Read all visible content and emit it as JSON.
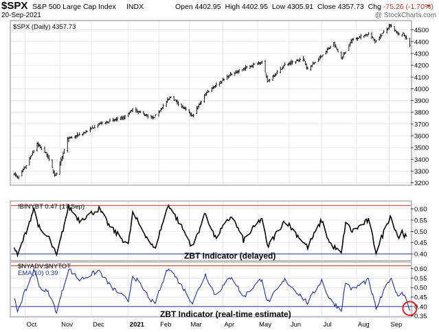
{
  "header": {
    "symbol": "$SPX",
    "name": "S&P 500 Large Cap Index",
    "exchange": "INDX",
    "date": "20-Sep-2021",
    "open_label": "Open",
    "open": "4402.95",
    "high_label": "High",
    "high": "4402.95",
    "low_label": "Low",
    "low": "4305.91",
    "close_label": "Close",
    "close": "4357.73",
    "chg_label": "Chg",
    "chg": "-75.26 (-1.70%)",
    "watermark": "@ StockCharts.com"
  },
  "chart_data": [
    {
      "type": "ohlc",
      "legend": "$SPX (Daily) 4357.73",
      "ylim": [
        3180,
        4580
      ],
      "yticks": [
        3200,
        3300,
        3400,
        3500,
        3600,
        3700,
        3800,
        3900,
        4000,
        4100,
        4200,
        4300,
        4400,
        4500
      ],
      "xticks": [
        "Oct",
        "Nov",
        "Dec",
        "2021",
        "Feb",
        "Mar",
        "Apr",
        "May",
        "Jun",
        "Jul",
        "Aug",
        "Sep"
      ],
      "anchors": [
        [
          "2020-09-21",
          3280
        ],
        [
          "2020-09-24",
          3240
        ],
        [
          "2020-10-02",
          3350
        ],
        [
          "2020-10-12",
          3535
        ],
        [
          "2020-10-16",
          3490
        ],
        [
          "2020-10-21",
          3440
        ],
        [
          "2020-10-28",
          3270
        ],
        [
          "2020-10-30",
          3270
        ],
        [
          "2020-11-09",
          3570
        ],
        [
          "2020-11-25",
          3630
        ],
        [
          "2020-12-08",
          3700
        ],
        [
          "2020-12-31",
          3756
        ],
        [
          "2021-01-08",
          3824
        ],
        [
          "2021-01-27",
          3750
        ],
        [
          "2021-02-12",
          3934
        ],
        [
          "2021-03-04",
          3768
        ],
        [
          "2021-03-17",
          3974
        ],
        [
          "2021-04-09",
          4128
        ],
        [
          "2021-05-07",
          4232
        ],
        [
          "2021-05-12",
          4063
        ],
        [
          "2021-05-28",
          4204
        ],
        [
          "2021-06-14",
          4255
        ],
        [
          "2021-06-18",
          4166
        ],
        [
          "2021-07-12",
          4384
        ],
        [
          "2021-07-19",
          4258
        ],
        [
          "2021-07-29",
          4419
        ],
        [
          "2021-08-13",
          4468
        ],
        [
          "2021-08-19",
          4405
        ],
        [
          "2021-09-02",
          4537
        ],
        [
          "2021-09-10",
          4458
        ],
        [
          "2021-09-13",
          4469
        ],
        [
          "2021-09-17",
          4433
        ],
        [
          "2021-09-20",
          4357.73
        ]
      ]
    },
    {
      "type": "line",
      "legend": "!BINYBT 0.47 (17 Sep)",
      "title": "ZBT Indicator (delayed)",
      "ylim": [
        0.37,
        0.635
      ],
      "yticks": [
        0.4,
        0.45,
        0.5,
        0.55,
        0.6
      ],
      "ylines": [
        0.615,
        0.4
      ],
      "anchors": [
        [
          "2020-09-21",
          0.43
        ],
        [
          "2020-09-24",
          0.39
        ],
        [
          "2020-10-09",
          0.6
        ],
        [
          "2020-10-15",
          0.5
        ],
        [
          "2020-10-23",
          0.47
        ],
        [
          "2020-10-30",
          0.39
        ],
        [
          "2020-11-10",
          0.61
        ],
        [
          "2020-11-20",
          0.55
        ],
        [
          "2020-12-08",
          0.6
        ],
        [
          "2020-12-18",
          0.52
        ],
        [
          "2021-01-04",
          0.44
        ],
        [
          "2021-01-08",
          0.58
        ],
        [
          "2021-01-28",
          0.42
        ],
        [
          "2021-02-10",
          0.62
        ],
        [
          "2021-02-22",
          0.52
        ],
        [
          "2021-03-04",
          0.43
        ],
        [
          "2021-03-16",
          0.58
        ],
        [
          "2021-03-25",
          0.47
        ],
        [
          "2021-04-09",
          0.57
        ],
        [
          "2021-04-20",
          0.46
        ],
        [
          "2021-05-07",
          0.56
        ],
        [
          "2021-05-12",
          0.43
        ],
        [
          "2021-05-28",
          0.55
        ],
        [
          "2021-06-18",
          0.43
        ],
        [
          "2021-07-01",
          0.55
        ],
        [
          "2021-07-08",
          0.45
        ],
        [
          "2021-07-19",
          0.4
        ],
        [
          "2021-07-23",
          0.54
        ],
        [
          "2021-07-29",
          0.5
        ],
        [
          "2021-08-13",
          0.55
        ],
        [
          "2021-08-20",
          0.41
        ],
        [
          "2021-09-02",
          0.57
        ],
        [
          "2021-09-10",
          0.47
        ],
        [
          "2021-09-13",
          0.5
        ],
        [
          "2021-09-17",
          0.47
        ]
      ]
    },
    {
      "type": "line",
      "legend_1": "$NYADV:$NYTOT",
      "legend_2": "EMA(10) 0.39",
      "title": "ZBT Indicator (real-time estimate)",
      "ylim": [
        0.345,
        0.635
      ],
      "yticks": [
        0.35,
        0.4,
        0.45,
        0.5,
        0.55,
        0.6
      ],
      "ylines": [
        0.615,
        0.4
      ],
      "anchors": [
        [
          "2020-09-21",
          0.44
        ],
        [
          "2020-09-24",
          0.38
        ],
        [
          "2020-10-09",
          0.59
        ],
        [
          "2020-10-15",
          0.5
        ],
        [
          "2020-10-23",
          0.47
        ],
        [
          "2020-10-30",
          0.37
        ],
        [
          "2020-11-10",
          0.6
        ],
        [
          "2020-11-20",
          0.54
        ],
        [
          "2020-12-08",
          0.59
        ],
        [
          "2020-12-18",
          0.51
        ],
        [
          "2021-01-04",
          0.43
        ],
        [
          "2021-01-08",
          0.57
        ],
        [
          "2021-01-28",
          0.41
        ],
        [
          "2021-02-10",
          0.61
        ],
        [
          "2021-02-22",
          0.51
        ],
        [
          "2021-03-04",
          0.42
        ],
        [
          "2021-03-16",
          0.57
        ],
        [
          "2021-03-25",
          0.46
        ],
        [
          "2021-04-09",
          0.56
        ],
        [
          "2021-04-20",
          0.45
        ],
        [
          "2021-05-07",
          0.55
        ],
        [
          "2021-05-12",
          0.42
        ],
        [
          "2021-05-28",
          0.54
        ],
        [
          "2021-06-18",
          0.42
        ],
        [
          "2021-07-01",
          0.54
        ],
        [
          "2021-07-08",
          0.44
        ],
        [
          "2021-07-19",
          0.38
        ],
        [
          "2021-07-23",
          0.53
        ],
        [
          "2021-07-29",
          0.49
        ],
        [
          "2021-08-13",
          0.54
        ],
        [
          "2021-08-20",
          0.39
        ],
        [
          "2021-09-02",
          0.55
        ],
        [
          "2021-09-10",
          0.45
        ],
        [
          "2021-09-13",
          0.48
        ],
        [
          "2021-09-17",
          0.44
        ],
        [
          "2021-09-20",
          0.39
        ]
      ]
    }
  ],
  "colors": {
    "price": "#000000",
    "zbt_delayed": "#000000",
    "zbt_realtime": "#1f2d9e",
    "level_line_top": "#c0392b",
    "level_line_bottom": "#1f2d9e",
    "highlight_circle": "#e02020",
    "grid": "#d9d9d9",
    "chg_down": "#c0392b"
  }
}
